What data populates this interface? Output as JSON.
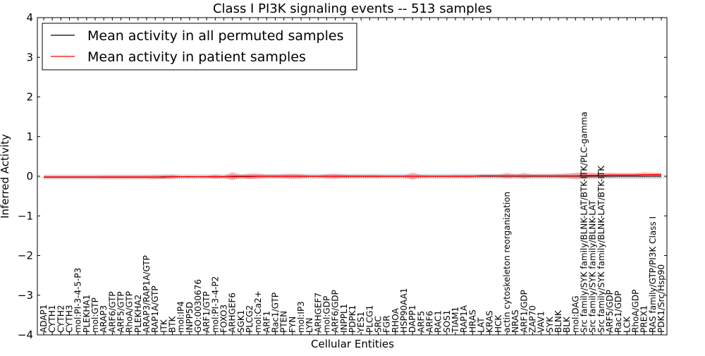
{
  "chart_data": {
    "type": "line",
    "title": "Class I PI3K signaling events -- 513 samples",
    "xlabel": "Cellular Entities",
    "ylabel": "Inferred Activity",
    "ylim": [
      -4,
      4
    ],
    "yticks": [
      4,
      3,
      2,
      1,
      0,
      -1,
      -2,
      -3,
      -4
    ],
    "ytick_labels": [
      "4",
      "3",
      "2",
      "1",
      "0",
      "−1",
      "−2",
      "−3",
      "−4"
    ],
    "grid": false,
    "legend_position": "top-left",
    "categories": [
      "ADAP1",
      "CYTH1",
      "CYTH2",
      "CYTH3",
      "mol:PI-3-4-5-P3",
      "PLEKHA1",
      "mol:GTP",
      "ARAP3",
      "ARF6/GTP",
      "ARF5/GTP",
      "RhoA/GTP",
      "PLEKHA2",
      "ARAP3/RAP1A/GTP",
      "RAP1A/GTP",
      "ITK",
      "BTK",
      "mol:IP4",
      "INPP5D",
      "GO:0030676",
      "ARF1/GTP",
      "mol:PI-3-4-P2",
      "FOXO3",
      "ARHGEF6",
      "SGK1",
      "PLCG2",
      "mol:Ca2+",
      "ARF1",
      "Rac1/GTP",
      "PTEN",
      "FYN",
      "mol:IP3",
      "LYN",
      "ARHGEF7",
      "mol:GDP",
      "ARF6/GDP",
      "INPPL1",
      "PDPK1",
      "YES1",
      "PLCG1",
      "SRC",
      "FGR",
      "RHOA",
      "HSP90AA1",
      "DAPP1",
      "ARF5",
      "ARF6",
      "RAC1",
      "SOS1",
      "TIAM1",
      "RAP1A",
      "HRAS",
      "LAT",
      "KRAS",
      "HCK",
      "actin cytoskeleton reorganization",
      "NRAS",
      "ARF1/GDP",
      "ZAP70",
      "VAV1",
      "SYK",
      "BLNK",
      "BLK",
      "mol:DAG",
      "Src family/SYK family/BLNK-LAT/BTK-ITK/PLC-gamma",
      "Src family/SYK family/BLNK-LAT",
      "Src family/SYK family/BLNK-LAT/BTK-ITK",
      "ARF5/GDP",
      "Rac1/GDP",
      "LCK",
      "RhoA/GDP",
      "PREX1",
      "RAS family/GTP/PI3K Class I",
      "PDK1/Src/Hsp90"
    ],
    "series": [
      {
        "name": "Mean activity in all permuted samples",
        "color": "#000000",
        "values": [
          -0.02,
          -0.02,
          -0.02,
          -0.02,
          -0.02,
          -0.02,
          -0.02,
          -0.02,
          -0.02,
          -0.02,
          -0.02,
          -0.02,
          -0.02,
          -0.02,
          -0.01,
          -0.01,
          -0.01,
          -0.01,
          -0.01,
          -0.01,
          -0.01,
          -0.01,
          -0.01,
          -0.01,
          -0.01,
          0.0,
          0.0,
          0.0,
          0.0,
          0.0,
          0.0,
          0.0,
          0.0,
          0.0,
          0.0,
          0.0,
          0.0,
          0.0,
          0.0,
          0.0,
          0.0,
          0.0,
          0.0,
          0.0,
          0.0,
          0.0,
          0.0,
          0.0,
          0.0,
          0.0,
          0.0,
          0.0,
          0.0,
          0.0,
          0.0,
          0.0,
          0.0,
          0.0,
          0.0,
          0.0,
          0.0,
          0.0,
          0.0,
          0.0,
          0.0,
          0.0,
          0.0,
          0.0,
          0.0,
          0.0,
          0.0,
          0.0,
          0.0
        ]
      },
      {
        "name": "Mean activity in patient samples",
        "color": "#ff0000",
        "values": [
          -0.02,
          -0.02,
          -0.02,
          -0.02,
          -0.02,
          -0.02,
          -0.02,
          -0.02,
          -0.02,
          -0.02,
          -0.02,
          -0.02,
          -0.02,
          -0.02,
          -0.02,
          -0.01,
          -0.01,
          -0.01,
          -0.01,
          -0.01,
          -0.01,
          -0.01,
          0.0,
          0.0,
          0.0,
          0.0,
          0.0,
          0.0,
          0.0,
          0.0,
          0.0,
          0.0,
          0.0,
          0.0,
          0.0,
          0.0,
          0.0,
          0.0,
          0.0,
          0.0,
          0.0,
          0.0,
          0.0,
          0.0,
          0.0,
          0.0,
          0.0,
          0.0,
          0.0,
          0.0,
          0.0,
          0.01,
          0.01,
          0.01,
          0.01,
          0.01,
          0.01,
          0.01,
          0.01,
          0.01,
          0.01,
          0.01,
          0.01,
          0.02,
          0.02,
          0.02,
          0.03,
          0.03,
          0.03,
          0.03,
          0.04,
          0.04,
          0.04
        ]
      }
    ],
    "band_halfwidth": [
      0.03,
      0.03,
      0.03,
      0.03,
      0.03,
      0.03,
      0.03,
      0.04,
      0.04,
      0.04,
      0.04,
      0.04,
      0.04,
      0.05,
      0.05,
      0.05,
      0.01,
      0.02,
      0.01,
      0.02,
      0.05,
      0.02,
      0.1,
      0.04,
      0.07,
      0.06,
      0.04,
      0.04,
      0.05,
      0.06,
      0.05,
      0.02,
      0.02,
      0.05,
      0.06,
      0.04,
      0.03,
      0.03,
      0.03,
      0.03,
      0.02,
      0.02,
      0.02,
      0.09,
      0.03,
      0.02,
      0.02,
      0.02,
      0.03,
      0.03,
      0.03,
      0.03,
      0.03,
      0.03,
      0.07,
      0.04,
      0.07,
      0.04,
      0.04,
      0.04,
      0.05,
      0.06,
      0.08,
      0.08,
      0.07,
      0.06,
      0.06,
      0.05,
      0.05,
      0.05,
      0.06,
      0.05,
      0.05
    ]
  }
}
